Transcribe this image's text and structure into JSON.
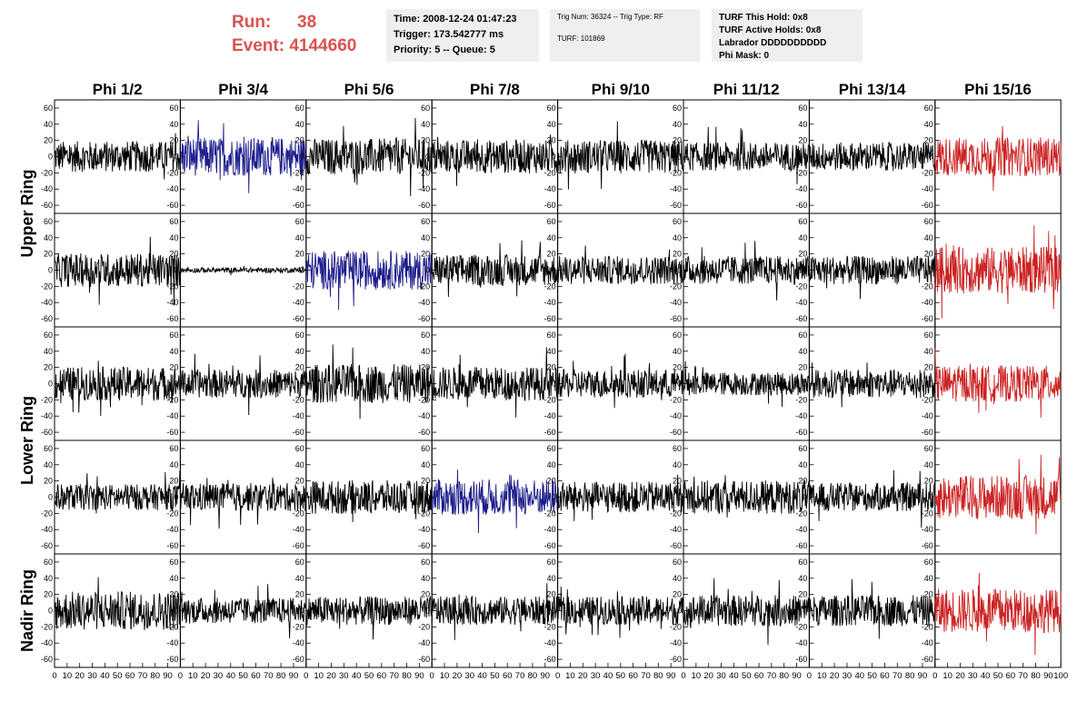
{
  "header": {
    "run_label": "Run:",
    "run_value": "38",
    "event_label": "Event:",
    "event_value": "4144660"
  },
  "info1": {
    "time": "Time: 2008-12-24 01:47:23",
    "trigger": "Trigger: 173.542777 ms",
    "priority": "Priority: 5 -- Queue: 5"
  },
  "info2": {
    "trig": "Trig Num: 36324 -- Trig Type: RF",
    "turf": "TURF: 101869"
  },
  "info3": {
    "hold": "TURF This Hold: 0x8",
    "active": "TURF Active Holds: 0x8",
    "labrador": "Labrador DDDDDDDDDD",
    "phimask": "Phi Mask: 0"
  },
  "chart_data": {
    "type": "line",
    "columns": [
      "Phi 1/2",
      "Phi 3/4",
      "Phi 5/6",
      "Phi 7/8",
      "Phi 9/10",
      "Phi 11/12",
      "Phi 13/14",
      "Phi 15/16"
    ],
    "row_labels": [
      "Upper Ring",
      "Lower Ring",
      "Nadir Ring"
    ],
    "xlim": [
      0,
      100
    ],
    "ylim": [
      -70,
      70
    ],
    "x_ticks": [
      "0",
      "10",
      "20",
      "30",
      "40",
      "50",
      "60",
      "70",
      "80",
      "90",
      "100"
    ],
    "y_ticks": [
      "60",
      "40",
      "20",
      "0",
      "-20",
      "-40",
      "-60"
    ],
    "colors": {
      "default": "#000000",
      "blue": "#1c1c8c",
      "red": "#cc2222"
    },
    "traces": [
      [
        {
          "amp": 12,
          "color": "default"
        },
        {
          "amp": 15,
          "color": "blue"
        },
        {
          "amp": 14,
          "color": "default"
        },
        {
          "amp": 13,
          "color": "default"
        },
        {
          "amp": 13,
          "color": "default"
        },
        {
          "amp": 11,
          "color": "default"
        },
        {
          "amp": 11,
          "color": "default"
        },
        {
          "amp": 15,
          "color": "red"
        }
      ],
      [
        {
          "amp": 13,
          "color": "default"
        },
        {
          "amp": 2,
          "color": "default"
        },
        {
          "amp": 15,
          "color": "blue"
        },
        {
          "amp": 12,
          "color": "default"
        },
        {
          "amp": 11,
          "color": "default"
        },
        {
          "amp": 11,
          "color": "default"
        },
        {
          "amp": 11,
          "color": "default"
        },
        {
          "amp": 18,
          "color": "red"
        }
      ],
      [
        {
          "amp": 13,
          "color": "default"
        },
        {
          "amp": 11,
          "color": "default"
        },
        {
          "amp": 15,
          "color": "default"
        },
        {
          "amp": 13,
          "color": "default"
        },
        {
          "amp": 11,
          "color": "default"
        },
        {
          "amp": 9,
          "color": "default"
        },
        {
          "amp": 11,
          "color": "default"
        },
        {
          "amp": 14,
          "color": "red"
        }
      ],
      [
        {
          "amp": 10,
          "color": "default"
        },
        {
          "amp": 11,
          "color": "default"
        },
        {
          "amp": 13,
          "color": "default"
        },
        {
          "amp": 14,
          "color": "blue"
        },
        {
          "amp": 12,
          "color": "default"
        },
        {
          "amp": 13,
          "color": "default"
        },
        {
          "amp": 11,
          "color": "default"
        },
        {
          "amp": 17,
          "color": "red"
        }
      ],
      [
        {
          "amp": 15,
          "color": "default"
        },
        {
          "amp": 10,
          "color": "default"
        },
        {
          "amp": 11,
          "color": "default"
        },
        {
          "amp": 11,
          "color": "default"
        },
        {
          "amp": 11,
          "color": "default"
        },
        {
          "amp": 12,
          "color": "default"
        },
        {
          "amp": 12,
          "color": "default"
        },
        {
          "amp": 17,
          "color": "red"
        }
      ]
    ]
  }
}
